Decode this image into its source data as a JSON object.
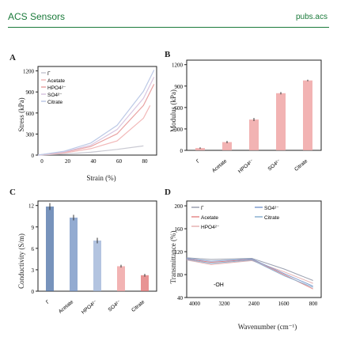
{
  "header": {
    "journal": "ACS Sensors",
    "site": "pubs.acs"
  },
  "colors": {
    "accent": "#1a7a3a",
    "series": [
      "#cc3333",
      "#e08080",
      "#4a6fa5",
      "#9ab0d6"
    ]
  },
  "panels": {
    "A": {
      "label": "A",
      "ylabel": "Stress (kPa)",
      "xlabel": "Strain (%)",
      "yticks": [
        "0",
        "300",
        "600",
        "900",
        "1200"
      ],
      "xticks": [
        "0",
        "20",
        "40",
        "60",
        "80"
      ],
      "legend": [
        "Γ",
        "Acetate",
        "HPO4²⁻",
        "SO4²⁻",
        "Citrate"
      ]
    },
    "B": {
      "label": "B",
      "ylabel": "Modulus (kPa)",
      "yticks": [
        "0",
        "300",
        "600",
        "900",
        "1200"
      ],
      "categories": [
        "Γ",
        "Acetate",
        "HPO4²⁻",
        "SO4²⁻",
        "Citrate"
      ]
    },
    "C": {
      "label": "C",
      "ylabel": "Conductivity (S/m)",
      "yticks": [
        "0",
        "3",
        "6",
        "9",
        "12"
      ],
      "categories": [
        "Γ",
        "Acetate",
        "HPO4²⁻",
        "SO4²⁻",
        "Citrate"
      ]
    },
    "D": {
      "label": "D",
      "ylabel": "Transmittance (%)",
      "xlabel": "Wavenumber (cm⁻¹)",
      "yticks": [
        "40",
        "80",
        "120",
        "160",
        "200"
      ],
      "xticks": [
        "4000",
        "3200",
        "2400",
        "1600",
        "800"
      ],
      "legend": [
        "Γ",
        "Acetate",
        "HPO4²⁻",
        "SO4²⁻",
        "Citrate"
      ],
      "annotation": "-OH"
    }
  },
  "chart_data": [
    {
      "type": "line",
      "title": "A",
      "xlabel": "Strain (%)",
      "ylabel": "Stress (kPa)",
      "xlim": [
        0,
        90
      ],
      "ylim": [
        0,
        1250
      ],
      "series": [
        {
          "name": "Γ",
          "x": [
            0,
            20,
            40,
            60,
            80
          ],
          "y": [
            0,
            15,
            40,
            80,
            130
          ]
        },
        {
          "name": "Acetate",
          "x": [
            0,
            20,
            40,
            60,
            80,
            85
          ],
          "y": [
            0,
            30,
            90,
            200,
            520,
            700
          ]
        },
        {
          "name": "HPO4²⁻",
          "x": [
            0,
            20,
            40,
            60,
            80,
            88
          ],
          "y": [
            0,
            40,
            120,
            300,
            700,
            1000
          ]
        },
        {
          "name": "SO4²⁻",
          "x": [
            0,
            20,
            40,
            60,
            80,
            88
          ],
          "y": [
            0,
            45,
            140,
            360,
            800,
            1100
          ]
        },
        {
          "name": "Citrate",
          "x": [
            0,
            20,
            40,
            60,
            80,
            88
          ],
          "y": [
            0,
            55,
            170,
            420,
            900,
            1200
          ]
        }
      ]
    },
    {
      "type": "bar",
      "title": "B",
      "ylabel": "Modulus (kPa)",
      "ylim": [
        0,
        1200
      ],
      "categories": [
        "Γ",
        "Acetate",
        "HPO4²⁻",
        "SO4²⁻",
        "Citrate"
      ],
      "values": [
        30,
        110,
        410,
        760,
        930
      ],
      "errors": [
        10,
        15,
        20,
        15,
        10
      ]
    },
    {
      "type": "bar",
      "title": "C",
      "ylabel": "Conductivity (S/m)",
      "ylim": [
        0,
        13
      ],
      "categories": [
        "Γ",
        "Acetate",
        "HPO4²⁻",
        "SO4²⁻",
        "Citrate"
      ],
      "values": [
        12.2,
        10.6,
        7.3,
        3.6,
        2.3
      ],
      "errors": [
        0.5,
        0.4,
        0.4,
        0.2,
        0.2
      ]
    },
    {
      "type": "line",
      "title": "D",
      "xlabel": "Wavenumber (cm⁻¹)",
      "ylabel": "Transmittance (%)",
      "xlim": [
        4000,
        700
      ],
      "ylim": [
        30,
        200
      ],
      "series": [
        {
          "name": "Γ",
          "x": [
            4000,
            3400,
            2400,
            1600,
            900
          ],
          "y": [
            100,
            97,
            99,
            80,
            60
          ]
        },
        {
          "name": "Acetate",
          "x": [
            4000,
            3400,
            2400,
            1600,
            900
          ],
          "y": [
            98,
            92,
            97,
            70,
            45
          ]
        },
        {
          "name": "HPO4²⁻",
          "x": [
            4000,
            3400,
            2400,
            1600,
            900
          ],
          "y": [
            96,
            88,
            95,
            75,
            55
          ]
        },
        {
          "name": "SO4²⁻",
          "x": [
            4000,
            3400,
            2400,
            1600,
            900
          ],
          "y": [
            99,
            94,
            98,
            72,
            50
          ]
        },
        {
          "name": "Citrate",
          "x": [
            4000,
            3400,
            2400,
            1600,
            900
          ],
          "y": [
            97,
            90,
            96,
            68,
            48
          ]
        }
      ]
    }
  ]
}
